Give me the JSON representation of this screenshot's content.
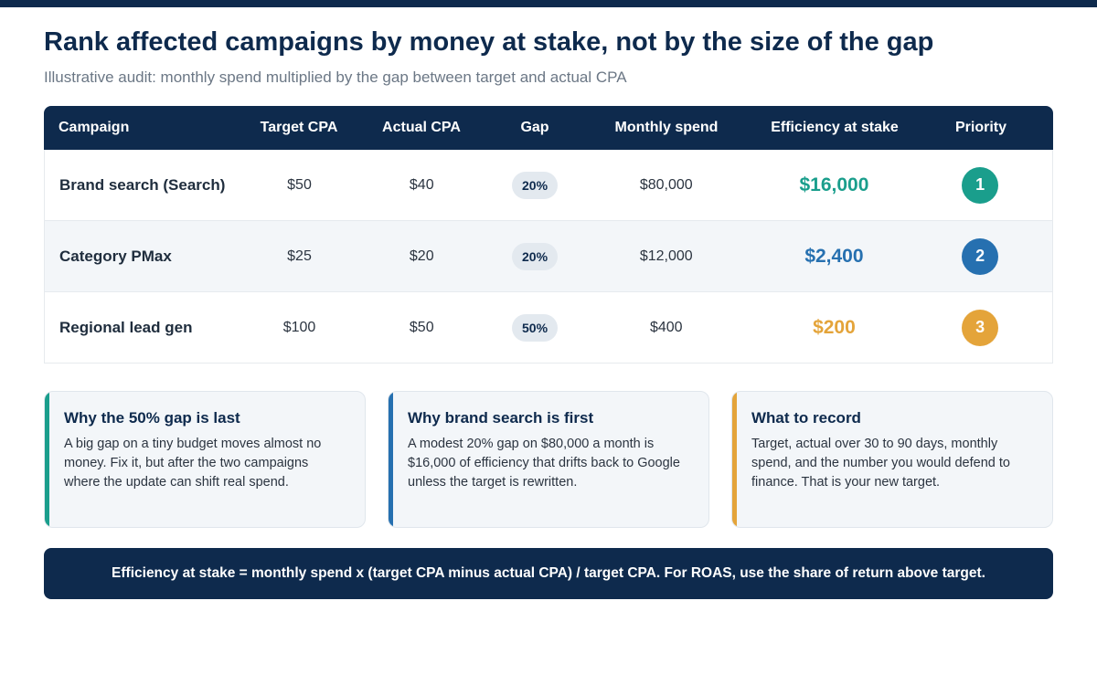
{
  "title": "Rank affected campaigns by money at stake, not by the size of the gap",
  "subtitle": "Illustrative audit: monthly spend multiplied by the gap between target and actual CPA",
  "table": {
    "headers": [
      "Campaign",
      "Target CPA",
      "Actual CPA",
      "Gap",
      "Monthly spend",
      "Efficiency at stake",
      "Priority"
    ],
    "rows": [
      {
        "campaign": "Brand search (Search)",
        "target_cpa": "$50",
        "actual_cpa": "$40",
        "gap": "20%",
        "monthly_spend": "$80,000",
        "efficiency_at_stake": "$16,000",
        "priority": "1",
        "color": "#1a9e8c"
      },
      {
        "campaign": "Category PMax",
        "target_cpa": "$25",
        "actual_cpa": "$20",
        "gap": "20%",
        "monthly_spend": "$12,000",
        "efficiency_at_stake": "$2,400",
        "priority": "2",
        "color": "#2670b0"
      },
      {
        "campaign": "Regional lead gen",
        "target_cpa": "$100",
        "actual_cpa": "$50",
        "gap": "50%",
        "monthly_spend": "$400",
        "efficiency_at_stake": "$200",
        "priority": "3",
        "color": "#e4a43a"
      }
    ]
  },
  "cards": [
    {
      "title": "Why the 50% gap is last",
      "body": "A big gap on a tiny budget moves almost no money. Fix it, but after the two campaigns where the update can shift real spend.",
      "accent": "#1a9e8c"
    },
    {
      "title": "Why brand search is first",
      "body": "A modest 20% gap on $80,000 a month is $16,000 of efficiency that drifts back to Google unless the target is rewritten.",
      "accent": "#2670b0"
    },
    {
      "title": "What to record",
      "body": "Target, actual over 30 to 90 days, monthly spend, and the number you would defend to finance. That is your new target.",
      "accent": "#e4a43a"
    }
  ],
  "footer": "Efficiency at stake = monthly spend x (target CPA minus actual CPA) / target CPA. For ROAS, use the share of return above target."
}
